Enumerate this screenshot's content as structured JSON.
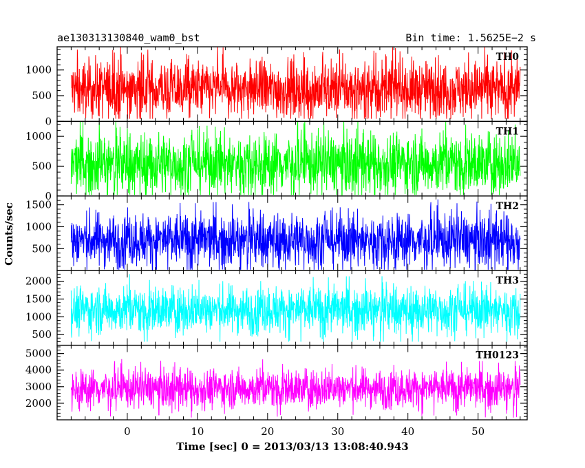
{
  "header": {
    "left": "ae130313130840_wam0_bst",
    "right": "Bin time: 1.5625E−2 s"
  },
  "chart_data": {
    "type": "line",
    "title": "ae130313130840_wam0_bst",
    "xlabel": "Time [sec] 0 = 2013/03/13 13:08:40.943",
    "ylabel": "Counts/sec",
    "xlim": [
      -10,
      57
    ],
    "data_x_range": [
      -8,
      56
    ],
    "x_ticks": [
      0,
      10,
      20,
      30,
      40,
      50
    ],
    "bin_time_s": 0.015625,
    "grid": false,
    "panels": [
      {
        "name": "TH0",
        "color": "#ff0000",
        "ylim": [
          0,
          1450
        ],
        "y_ticks": [
          0,
          500,
          1000
        ],
        "baseline": 620,
        "typical_low": 150,
        "typical_high": 1150,
        "min": 50,
        "max": 1450
      },
      {
        "name": "TH1",
        "color": "#00ff00",
        "ylim": [
          0,
          1250
        ],
        "y_ticks": [
          0,
          500,
          1000
        ],
        "baseline": 550,
        "typical_low": 120,
        "typical_high": 1050,
        "min": 20,
        "max": 1250
      },
      {
        "name": "TH2",
        "color": "#0000ff",
        "ylim": [
          0,
          1700
        ],
        "y_ticks": [
          500,
          1000,
          1500
        ],
        "baseline": 700,
        "typical_low": 200,
        "typical_high": 1300,
        "min": 20,
        "max": 1650
      },
      {
        "name": "TH3",
        "color": "#00ffff",
        "ylim": [
          200,
          2300
        ],
        "y_ticks": [
          500,
          1000,
          1500,
          2000
        ],
        "baseline": 1200,
        "typical_low": 600,
        "typical_high": 1800,
        "min": 300,
        "max": 2300
      },
      {
        "name": "TH0123",
        "color": "#ff00ff",
        "ylim": [
          1000,
          5500
        ],
        "y_ticks": [
          2000,
          3000,
          4000,
          5000
        ],
        "baseline": 2900,
        "typical_low": 1900,
        "typical_high": 4000,
        "min": 1100,
        "max": 5200
      }
    ]
  }
}
